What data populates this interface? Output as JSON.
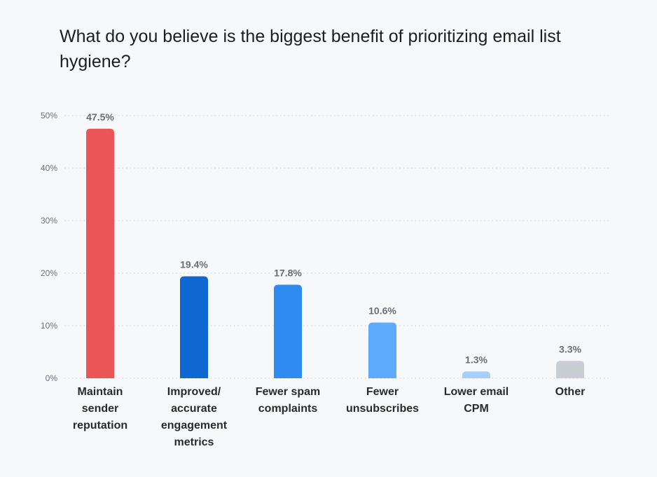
{
  "chart_data": {
    "type": "bar",
    "title": "What do you believe is the biggest benefit of prioritizing email list hygiene?",
    "xlabel": "",
    "ylabel": "",
    "ylim": [
      0,
      50
    ],
    "yticks": [
      "0%",
      "10%",
      "20%",
      "30%",
      "40%",
      "50%"
    ],
    "grid": true,
    "categories": [
      "Maintain sender reputation",
      "Improved/ accurate engagement metrics",
      "Fewer spam complaints",
      "Fewer unsubscribes",
      "Lower email CPM",
      "Other"
    ],
    "values": [
      47.5,
      19.4,
      17.8,
      10.6,
      1.3,
      3.3
    ],
    "data_labels": [
      "47.5%",
      "19.4%",
      "17.8%",
      "10.6%",
      "1.3%",
      "3.3%"
    ],
    "colors": [
      "#ec5555",
      "#0f67d2",
      "#2e8bef",
      "#5eaafc",
      "#a6cffb",
      "#c9ced4"
    ]
  }
}
